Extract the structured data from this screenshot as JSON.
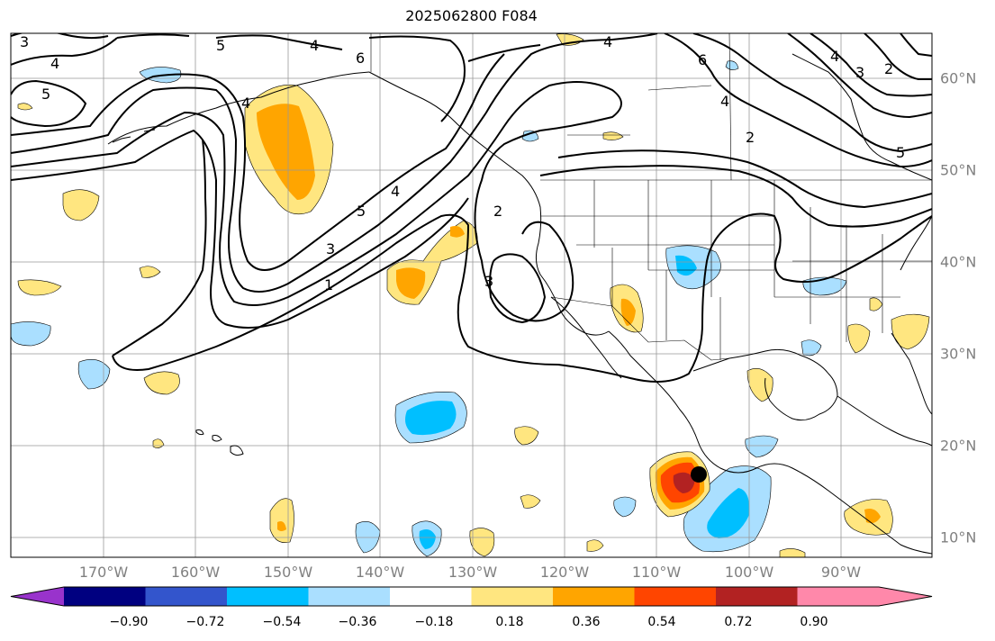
{
  "title": "2025062800 F084",
  "lat_labels": [
    "60°N",
    "50°N",
    "40°N",
    "30°N",
    "20°N",
    "10°N"
  ],
  "lon_labels": [
    "170°W",
    "160°W",
    "150°W",
    "140°W",
    "130°W",
    "120°W",
    "110°W",
    "100°W",
    "90°W"
  ],
  "colorbar": {
    "tick_labels": [
      "−0.90",
      "−0.72",
      "−0.54",
      "−0.36",
      "−0.18",
      "0.18",
      "0.36",
      "0.54",
      "0.72",
      "0.90"
    ],
    "colors": [
      "#9933cc",
      "#000080",
      "#3355cc",
      "#00bfff",
      "#aadfff",
      "#ffffff",
      "#ffe680",
      "#ffa500",
      "#ff4500",
      "#b22222",
      "#ff88aa",
      "#ff88aa"
    ]
  },
  "contour_labels": [
    "3",
    "4",
    "5",
    "4",
    "6",
    "4",
    "5",
    "4",
    "6",
    "2",
    "5",
    "4",
    "3",
    "2",
    "5",
    "4",
    "3",
    "1",
    "2",
    "3",
    "4"
  ],
  "colors": {
    "grid": "#999999",
    "land_outline": "#000000",
    "contour": "#000000",
    "marker": "#000000"
  }
}
